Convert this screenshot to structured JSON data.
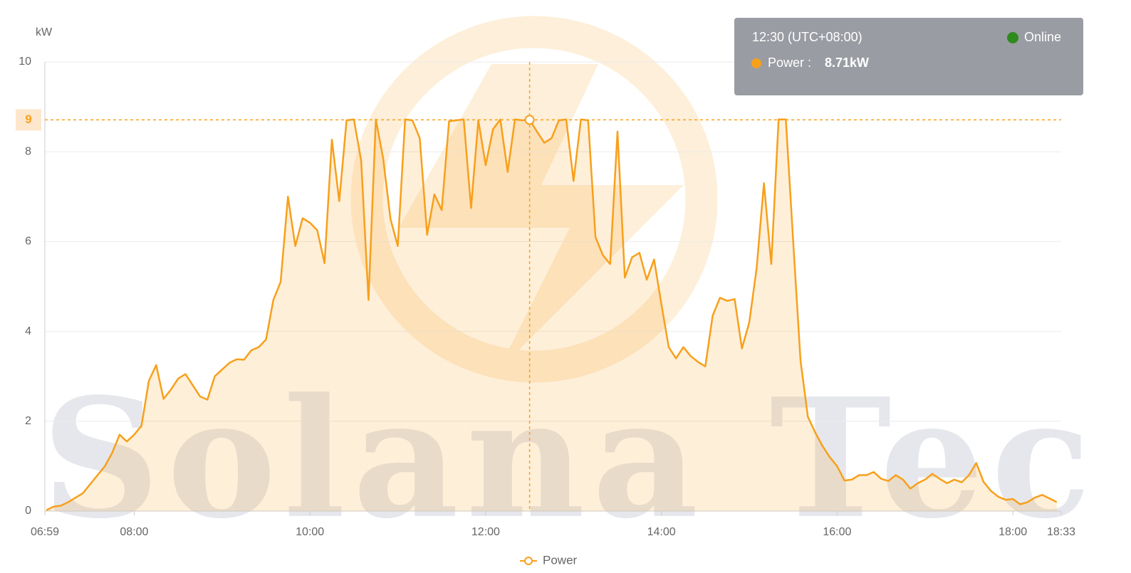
{
  "chart_data": {
    "type": "area",
    "y_label": "kW",
    "watermark": "Solana Tec",
    "ylim": [
      0,
      10
    ],
    "yticks": [
      0,
      2,
      4,
      6,
      8,
      10
    ],
    "xlim": [
      "06:59",
      "18:33"
    ],
    "xticks": [
      "06:59",
      "08:00",
      "10:00",
      "12:00",
      "14:00",
      "16:00",
      "18:00",
      "18:33"
    ],
    "grid": true,
    "legend": "bottom",
    "x": [
      "07:00",
      "07:05",
      "07:10",
      "07:15",
      "07:20",
      "07:25",
      "07:30",
      "07:35",
      "07:40",
      "07:45",
      "07:50",
      "07:55",
      "08:00",
      "08:05",
      "08:10",
      "08:15",
      "08:20",
      "08:25",
      "08:30",
      "08:35",
      "08:40",
      "08:45",
      "08:50",
      "08:55",
      "09:00",
      "09:05",
      "09:10",
      "09:15",
      "09:20",
      "09:25",
      "09:30",
      "09:35",
      "09:40",
      "09:45",
      "09:50",
      "09:55",
      "10:00",
      "10:05",
      "10:10",
      "10:15",
      "10:20",
      "10:25",
      "10:30",
      "10:35",
      "10:40",
      "10:45",
      "10:50",
      "10:55",
      "11:00",
      "11:05",
      "11:10",
      "11:15",
      "11:20",
      "11:25",
      "11:30",
      "11:35",
      "11:40",
      "11:45",
      "11:50",
      "11:55",
      "12:00",
      "12:05",
      "12:10",
      "12:15",
      "12:20",
      "12:25",
      "12:30",
      "12:35",
      "12:40",
      "12:45",
      "12:50",
      "12:55",
      "13:00",
      "13:05",
      "13:10",
      "13:15",
      "13:20",
      "13:25",
      "13:30",
      "13:35",
      "13:40",
      "13:45",
      "13:50",
      "13:55",
      "14:00",
      "14:05",
      "14:10",
      "14:15",
      "14:20",
      "14:25",
      "14:30",
      "14:35",
      "14:40",
      "14:45",
      "14:50",
      "14:55",
      "15:00",
      "15:05",
      "15:10",
      "15:15",
      "15:20",
      "15:25",
      "15:30",
      "15:35",
      "15:40",
      "15:45",
      "15:50",
      "15:55",
      "16:00",
      "16:05",
      "16:10",
      "16:15",
      "16:20",
      "16:25",
      "16:30",
      "16:35",
      "16:40",
      "16:45",
      "16:50",
      "16:55",
      "17:00",
      "17:05",
      "17:10",
      "17:15",
      "17:20",
      "17:25",
      "17:30",
      "17:35",
      "17:40",
      "17:45",
      "17:50",
      "17:55",
      "18:00",
      "18:05",
      "18:10",
      "18:15",
      "18:20",
      "18:25",
      "18:30"
    ],
    "series": [
      {
        "name": "Power",
        "color": "#f7a01c",
        "values": [
          0.02,
          0.1,
          0.12,
          0.2,
          0.3,
          0.4,
          0.6,
          0.8,
          1.0,
          1.3,
          1.7,
          1.55,
          1.7,
          1.9,
          2.9,
          3.25,
          2.5,
          2.7,
          2.95,
          3.05,
          2.8,
          2.55,
          2.48,
          3.0,
          3.15,
          3.3,
          3.38,
          3.37,
          3.58,
          3.65,
          3.82,
          4.7,
          5.1,
          7.0,
          5.9,
          6.52,
          6.42,
          6.25,
          5.52,
          8.27,
          6.9,
          8.7,
          8.72,
          7.8,
          4.7,
          8.72,
          7.85,
          6.5,
          5.9,
          8.72,
          8.7,
          8.3,
          6.15,
          7.05,
          6.7,
          8.68,
          8.7,
          8.72,
          6.75,
          8.7,
          7.7,
          8.5,
          8.72,
          7.55,
          8.72,
          8.7,
          8.71,
          8.45,
          8.2,
          8.3,
          8.7,
          8.72,
          7.35,
          8.72,
          8.7,
          6.1,
          5.7,
          5.5,
          8.45,
          5.2,
          5.65,
          5.75,
          5.15,
          5.6,
          4.6,
          3.65,
          3.4,
          3.65,
          3.45,
          3.32,
          3.22,
          4.35,
          4.75,
          4.68,
          4.72,
          3.62,
          4.2,
          5.4,
          7.3,
          5.5,
          8.72,
          8.72,
          6.0,
          3.35,
          2.1,
          1.75,
          1.45,
          1.2,
          1.0,
          0.68,
          0.7,
          0.8,
          0.8,
          0.87,
          0.72,
          0.67,
          0.8,
          0.7,
          0.5,
          0.62,
          0.7,
          0.83,
          0.72,
          0.62,
          0.7,
          0.64,
          0.8,
          1.07,
          0.65,
          0.45,
          0.32,
          0.25,
          0.27,
          0.15,
          0.2,
          0.3,
          0.36,
          0.28,
          0.2
        ]
      }
    ],
    "tooltip": {
      "time": "12:30 (UTC+08:00)",
      "status": "Online",
      "series_label": "Power :",
      "value": 8.71,
      "value_label": "8.71kW",
      "axis_pointer": {
        "value": 8.71,
        "label": "9"
      }
    }
  }
}
